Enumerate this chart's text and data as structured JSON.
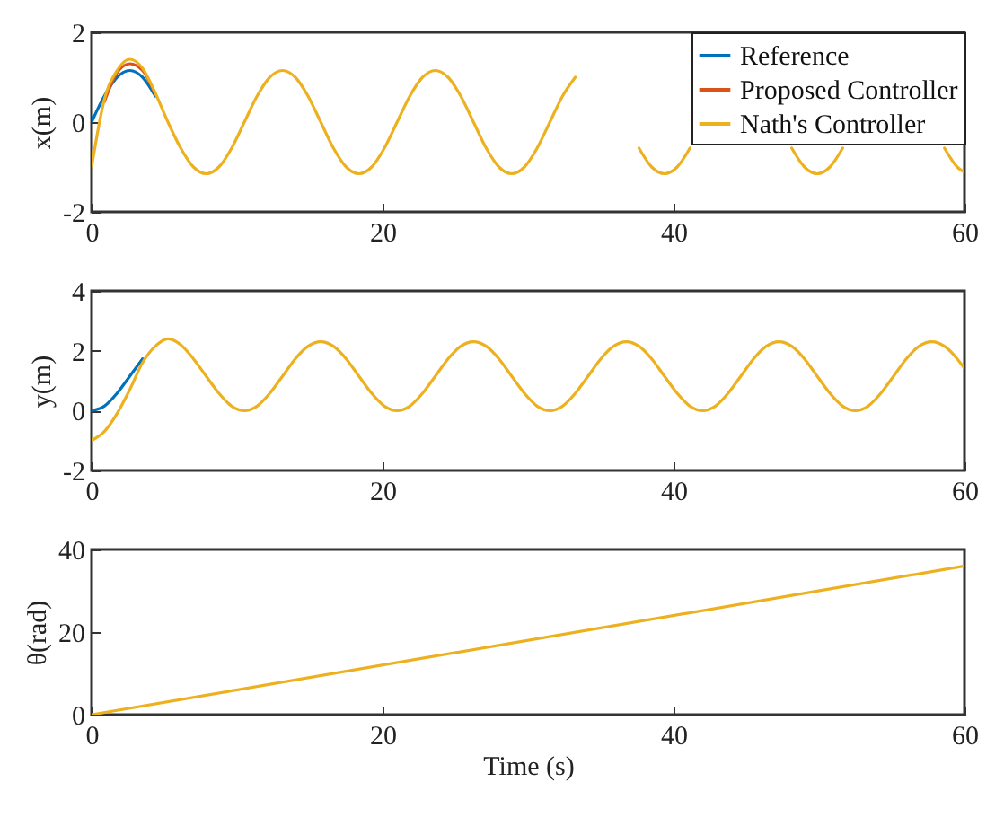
{
  "chart_data": [
    {
      "type": "line",
      "ylabel": "x(m)",
      "xlim": [
        0,
        60
      ],
      "xticks": [
        0,
        20,
        40,
        60
      ],
      "ylim": [
        -2,
        2
      ],
      "yticks": [
        -2,
        0,
        2
      ],
      "legend": "top right",
      "grid": false,
      "line_style": "solid",
      "marker": "none",
      "x": [
        0,
        0.875,
        1.75,
        2.625,
        3.5,
        4.375,
        5.25,
        6.125,
        7,
        7.875,
        8.75,
        9.625,
        10.5,
        11.375,
        12.25,
        13.125,
        14,
        14.875,
        15.75,
        16.625,
        17.5,
        18.375,
        19.25,
        20.125,
        21,
        21.875,
        22.75,
        23.625,
        24.5,
        25.375,
        26.25,
        27.125,
        28,
        28.875,
        29.75,
        30.625,
        31.5,
        32.375,
        33.25,
        34.125,
        35,
        35.875,
        36.75,
        37.625,
        38.5,
        39.375,
        40.25,
        41.125,
        42,
        42.875,
        43.75,
        44.625,
        45.5,
        46.375,
        47.25,
        48.125,
        49,
        49.875,
        50.75,
        51.625,
        52.5,
        53.375,
        54.25,
        55.125,
        56,
        56.875,
        57.75,
        58.625,
        59.5,
        60
      ],
      "series": [
        {
          "name": "Reference",
          "color": "#0072bd",
          "values": [
            0,
            0.58,
            1.0,
            1.15,
            1.0,
            0.58,
            null,
            null,
            null,
            null,
            null,
            null,
            null,
            null,
            null,
            null,
            null,
            null,
            null,
            null,
            null,
            null,
            null,
            null,
            null,
            null,
            null,
            null,
            null,
            null,
            null,
            null,
            null,
            null,
            null,
            null,
            null,
            null,
            null,
            null,
            null,
            null,
            null,
            null,
            null,
            null,
            null,
            null,
            null,
            null,
            null,
            null,
            null,
            null,
            null,
            null,
            null,
            null,
            null,
            null,
            null,
            null,
            null,
            null,
            null,
            null,
            null,
            null,
            null,
            null
          ]
        },
        {
          "name": "Proposed Controller",
          "color": "#d95319",
          "values": [
            null,
            0.45,
            1.1,
            1.3,
            1.15,
            0.62,
            null,
            null,
            null,
            null,
            null,
            null,
            null,
            null,
            null,
            null,
            null,
            null,
            null,
            null,
            null,
            null,
            null,
            null,
            null,
            null,
            null,
            null,
            null,
            null,
            null,
            null,
            null,
            null,
            null,
            null,
            null,
            null,
            null,
            null,
            null,
            null,
            null,
            null,
            null,
            null,
            null,
            null,
            null,
            null,
            null,
            null,
            null,
            null,
            null,
            null,
            null,
            null,
            null,
            null,
            null,
            null,
            null,
            null,
            null,
            null,
            null,
            null,
            null,
            null
          ]
        },
        {
          "name": "Nath's Controller",
          "color": "#edb120",
          "values": [
            -1.0,
            0.5,
            1.15,
            1.4,
            1.2,
            0.65,
            0,
            -0.58,
            -1.0,
            -1.15,
            -1.0,
            -0.58,
            0,
            0.58,
            1.0,
            1.15,
            1.0,
            0.58,
            0,
            -0.58,
            -1.0,
            -1.15,
            -1.0,
            -0.58,
            0,
            0.58,
            1.0,
            1.15,
            1.0,
            0.58,
            0,
            -0.58,
            -1.0,
            -1.15,
            -1.0,
            -0.58,
            0,
            0.58,
            1.0,
            null,
            null,
            null,
            null,
            -0.58,
            -1.0,
            -1.15,
            -1.0,
            -0.58,
            null,
            null,
            null,
            null,
            null,
            null,
            null,
            -0.58,
            -1.0,
            -1.15,
            -1.0,
            -0.58,
            null,
            null,
            null,
            null,
            null,
            null,
            null,
            -0.58,
            -1.0,
            -1.12
          ]
        }
      ]
    },
    {
      "type": "line",
      "ylabel": "y(m)",
      "xlim": [
        0,
        60
      ],
      "xticks": [
        0,
        20,
        40,
        60
      ],
      "ylim": [
        -2,
        4
      ],
      "yticks": [
        -2,
        0,
        2,
        4
      ],
      "grid": false,
      "line_style": "solid",
      "marker": "none",
      "x": [
        0,
        0.875,
        1.75,
        2.625,
        3.5,
        4.375,
        5.25,
        6.125,
        7,
        7.875,
        8.75,
        9.625,
        10.5,
        11.375,
        12.25,
        13.125,
        14,
        14.875,
        15.75,
        16.625,
        17.5,
        18.375,
        19.25,
        20.125,
        21,
        21.875,
        22.75,
        23.625,
        24.5,
        25.375,
        26.25,
        27.125,
        28,
        28.875,
        29.75,
        30.625,
        31.5,
        32.375,
        33.25,
        34.125,
        35,
        35.875,
        36.75,
        37.625,
        38.5,
        39.375,
        40.25,
        41.125,
        42,
        42.875,
        43.75,
        44.625,
        45.5,
        46.375,
        47.25,
        48.125,
        49,
        49.875,
        50.75,
        51.625,
        52.5,
        53.375,
        54.25,
        55.125,
        56,
        56.875,
        57.75,
        58.625,
        59.5,
        60
      ],
      "series": [
        {
          "color": "#0072bd",
          "values": [
            0,
            0.15,
            0.58,
            1.15,
            1.73,
            null,
            null,
            null,
            null,
            null,
            null,
            null,
            null,
            null,
            null,
            null,
            null,
            null,
            null,
            null,
            null,
            null,
            null,
            null,
            null,
            null,
            null,
            null,
            null,
            null,
            null,
            null,
            null,
            null,
            null,
            null,
            null,
            null,
            null,
            null,
            null,
            null,
            null,
            null,
            null,
            null,
            null,
            null,
            null,
            null,
            null,
            null,
            null,
            null,
            null,
            null,
            null,
            null,
            null,
            null,
            null,
            null,
            null,
            null,
            null,
            null,
            null,
            null,
            null,
            null
          ]
        },
        {
          "color": "#edb120",
          "values": [
            -1.0,
            -0.7,
            -0.1,
            0.7,
            1.6,
            2.15,
            2.4,
            2.2,
            1.73,
            1.15,
            0.58,
            0.15,
            0,
            0.15,
            0.58,
            1.15,
            1.73,
            2.15,
            2.3,
            2.15,
            1.73,
            1.15,
            0.58,
            0.15,
            0,
            0.15,
            0.58,
            1.15,
            1.73,
            2.15,
            2.3,
            2.15,
            1.73,
            1.15,
            0.58,
            0.15,
            0,
            0.15,
            0.58,
            1.15,
            1.73,
            2.15,
            2.3,
            2.15,
            1.73,
            1.15,
            0.58,
            0.15,
            0,
            0.15,
            0.58,
            1.15,
            1.73,
            2.15,
            2.3,
            2.15,
            1.73,
            1.15,
            0.58,
            0.15,
            0,
            0.15,
            0.58,
            1.15,
            1.73,
            2.15,
            2.3,
            2.15,
            1.73,
            1.41
          ]
        }
      ]
    },
    {
      "type": "line",
      "ylabel": "θ(rad)",
      "xlabel": "Time (s)",
      "xlim": [
        0,
        60
      ],
      "xticks": [
        0,
        20,
        40,
        60
      ],
      "ylim": [
        0,
        40
      ],
      "yticks": [
        0,
        20,
        40
      ],
      "grid": false,
      "line_style": "solid",
      "marker": "none",
      "x": [
        0,
        60
      ],
      "series": [
        {
          "color": "#edb120",
          "values": [
            0,
            36
          ]
        }
      ]
    }
  ]
}
